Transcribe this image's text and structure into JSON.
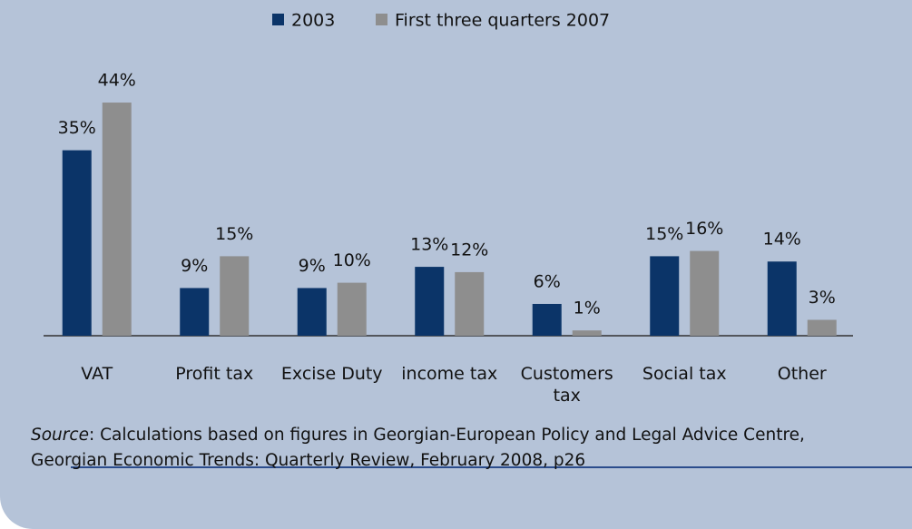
{
  "chart_data": {
    "type": "bar",
    "categories": [
      "VAT",
      "Profit tax",
      "Excise Duty",
      "income tax",
      "Customers tax",
      "Social tax",
      "Other"
    ],
    "series": [
      {
        "name": "2003",
        "color": "#0b3468",
        "values": [
          35,
          9,
          9,
          13,
          6,
          15,
          14
        ],
        "value_labels": [
          "35%",
          "9%",
          "9%",
          "13%",
          "6%",
          "15%",
          "14%"
        ]
      },
      {
        "name": "First three quarters 2007",
        "color": "#8e8e8e",
        "values": [
          44,
          15,
          10,
          12,
          1,
          16,
          3
        ],
        "value_labels": [
          "44%",
          "15%",
          "10%",
          "12%",
          "1%",
          "16%",
          "3%"
        ]
      }
    ],
    "ylim": [
      0,
      50
    ],
    "source_label": "Source",
    "source_lines": [
      ": Calculations based on figures in Georgian-European Policy and Legal Advice Centre,",
      "Georgian Economic Trends: Quarterly Review, February 2008, p26"
    ]
  }
}
